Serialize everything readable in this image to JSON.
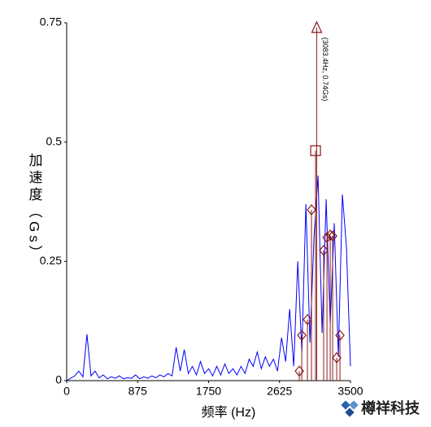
{
  "chart_data": {
    "type": "line",
    "xlabel": "频率 (Hz)",
    "ylabel": "加速度（Gs）",
    "annotation": "(3083.4Hz, 0.74Gs)",
    "annotation_x": 3083.4,
    "annotation_y": 0.74,
    "watermark": "樽祥科技",
    "xlim": [
      0,
      3500
    ],
    "xticks": [
      0,
      875,
      1750,
      2625,
      3500
    ],
    "ylim": [
      0,
      0.75
    ],
    "yticks": [
      0,
      0.25,
      0.5,
      0.75
    ],
    "series": [
      {
        "color": "#0000ff",
        "marker": "none",
        "x": [
          0,
          50,
          100,
          150,
          200,
          250,
          300,
          350,
          400,
          450,
          500,
          550,
          600,
          650,
          700,
          750,
          800,
          850,
          900,
          950,
          1000,
          1050,
          1100,
          1150,
          1200,
          1250,
          1300,
          1350,
          1400,
          1450,
          1500,
          1550,
          1600,
          1650,
          1700,
          1750,
          1800,
          1850,
          1900,
          1950,
          2000,
          2050,
          2100,
          2150,
          2200,
          2250,
          2300,
          2350,
          2400,
          2450,
          2500,
          2550,
          2600,
          2650,
          2700,
          2750,
          2800,
          2850,
          2900,
          2950,
          3000,
          3050,
          3100,
          3150,
          3200,
          3250,
          3300,
          3350,
          3400,
          3450,
          3500
        ],
        "values": [
          0,
          0.005,
          0.01,
          0.02,
          0.008,
          0.097,
          0.01,
          0.02,
          0.006,
          0.012,
          0.004,
          0.008,
          0.005,
          0.01,
          0.004,
          0.006,
          0.005,
          0.012,
          0.004,
          0.008,
          0.005,
          0.01,
          0.006,
          0.012,
          0.008,
          0.015,
          0.01,
          0.07,
          0.02,
          0.065,
          0.015,
          0.03,
          0.012,
          0.04,
          0.015,
          0.025,
          0.01,
          0.03,
          0.012,
          0.035,
          0.015,
          0.025,
          0.012,
          0.03,
          0.015,
          0.045,
          0.03,
          0.06,
          0.025,
          0.05,
          0.03,
          0.045,
          0.02,
          0.09,
          0.04,
          0.15,
          0.03,
          0.25,
          0.06,
          0.37,
          0.08,
          0.3,
          0.43,
          0.1,
          0.38,
          0.12,
          0.33,
          0.05,
          0.39,
          0.28,
          0.03
        ]
      },
      {
        "color": "#8b1a1a",
        "marker": "triangle",
        "x": [
          3083.4
        ],
        "values": [
          0.74
        ]
      },
      {
        "color": "#8b1a1a",
        "marker": "square",
        "x": [
          3069
        ],
        "values": [
          0.482
        ]
      },
      {
        "color": "#8b1a1a",
        "marker": "diamond",
        "x": [
          3019,
          2969,
          2899,
          2869,
          3169,
          3210,
          3250,
          3280,
          3370,
          3330
        ],
        "values": [
          0.358,
          0.128,
          0.095,
          0.02,
          0.273,
          0.3,
          0.305,
          0.303,
          0.095,
          0.048
        ]
      }
    ]
  }
}
